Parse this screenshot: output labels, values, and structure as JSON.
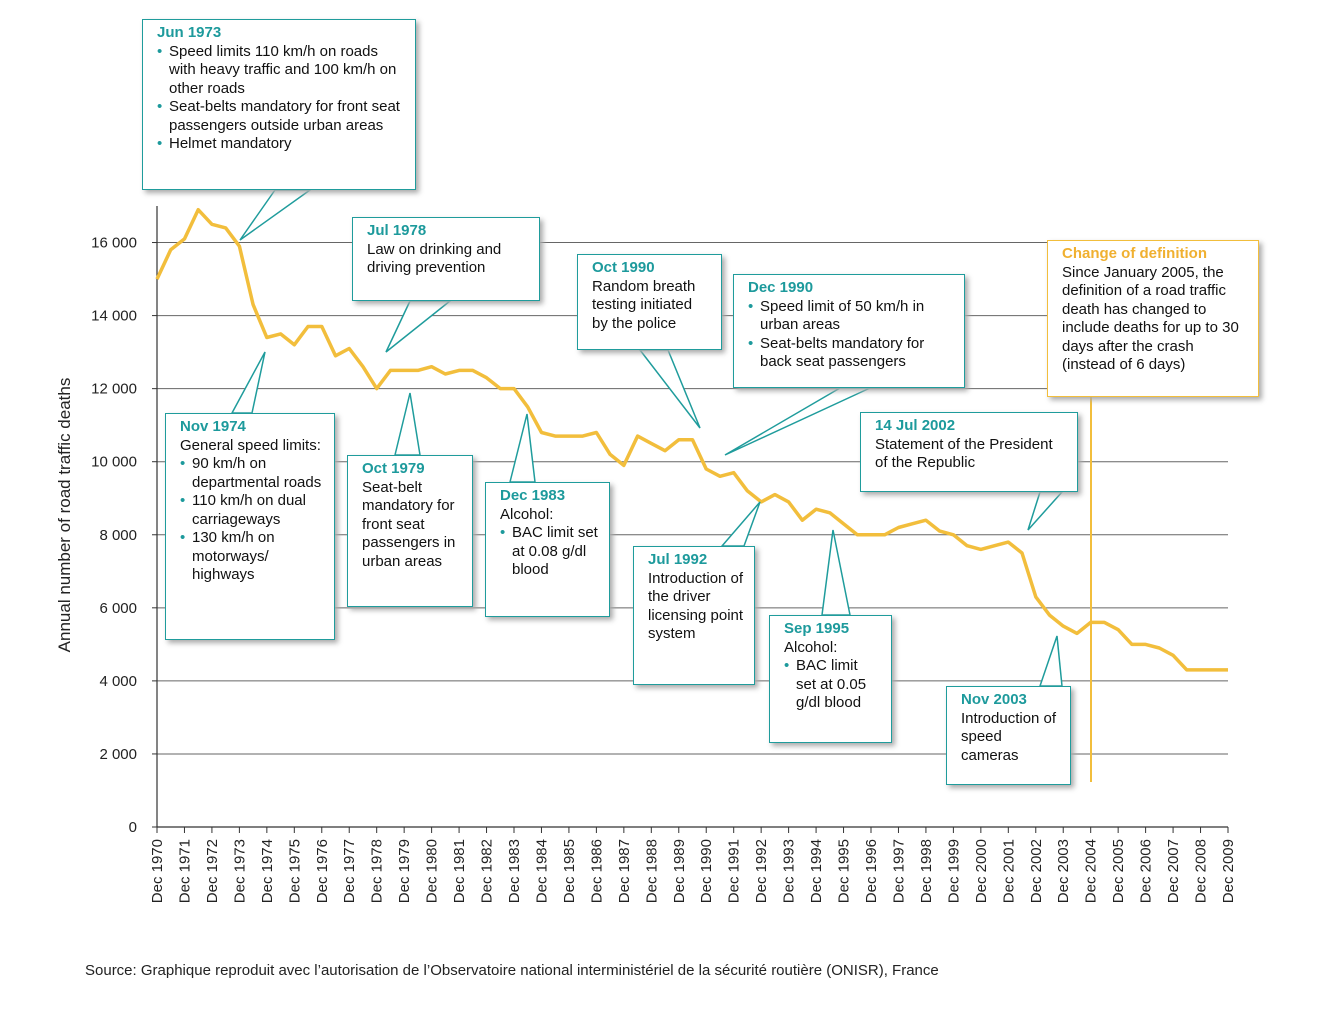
{
  "chart_data": {
    "type": "line",
    "y_label": "Annual number of road traffic deaths",
    "source": "Source: Graphique reproduit avec l’autorisation de l’Observatoire national interministériel de la sécurité routière (ONISR), France",
    "color": "#f2be3c",
    "categories": [
      "Dec 1970",
      null,
      "Dec 1971",
      null,
      "Dec 1972",
      null,
      "Dec 1973",
      null,
      "Dec 1974",
      null,
      "Dec 1975",
      null,
      "Dec 1976",
      null,
      "Dec 1977",
      null,
      "Dec 1978",
      null,
      "Dec 1979",
      null,
      "Dec 1980",
      null,
      "Dec 1981",
      null,
      "Dec 1982",
      null,
      "Dec 1983",
      null,
      "Dec 1984",
      null,
      "Dec 1985",
      null,
      "Dec 1986",
      null,
      "Dec 1987",
      null,
      "Dec 1988",
      null,
      "Dec 1989",
      null,
      "Dec 1990",
      null,
      "Dec 1991",
      null,
      "Dec 1992",
      null,
      "Dec 1993",
      null,
      "Dec 1994",
      null,
      "Dec 1995",
      null,
      "Dec 1996",
      null,
      "Dec 1997",
      null,
      "Dec 1998",
      null,
      "Dec 1999",
      null,
      "Dec 2000",
      null,
      "Dec 2001",
      null,
      "Dec 2002",
      null,
      "Dec 2003",
      null,
      "Dec 2004",
      null,
      "Dec 2005",
      null,
      "Dec 2006",
      null,
      "Dec 2007",
      null,
      "Dec 2008",
      null,
      "Dec 2009"
    ],
    "values": [
      15000,
      15800,
      16100,
      16900,
      16500,
      16400,
      15900,
      14300,
      13400,
      13500,
      13200,
      13700,
      13700,
      12900,
      13100,
      12600,
      12000,
      12500,
      12500,
      12500,
      12600,
      12400,
      12500,
      12500,
      12300,
      12000,
      12000,
      11500,
      10800,
      10700,
      10700,
      10700,
      10800,
      10200,
      9900,
      10700,
      10500,
      10300,
      10600,
      10600,
      9800,
      9600,
      9700,
      9200,
      8900,
      9100,
      8900,
      8400,
      8700,
      8600,
      8300,
      8000,
      8000,
      8000,
      8200,
      8300,
      8400,
      8100,
      8000,
      7700,
      7600,
      7700,
      7800,
      7500,
      6300,
      5800,
      5500,
      5300,
      5600,
      5600,
      5400,
      5000,
      5000,
      4900,
      4700,
      4300,
      4300,
      4300,
      4300
    ],
    "ylim": [
      0,
      17000
    ],
    "yticks": [
      0,
      {
        "value": 2000,
        "label": "2 000"
      },
      {
        "value": 4000,
        "label": "4 000"
      },
      {
        "value": 6000,
        "label": "6 000"
      },
      {
        "value": 8000,
        "label": "8 000"
      },
      {
        "value": 10000,
        "label": "10 000"
      },
      {
        "value": 12000,
        "label": "12 000"
      },
      {
        "value": 14000,
        "label": "14 000"
      },
      {
        "value": 16000,
        "label": "16 000"
      }
    ],
    "grid": true,
    "annotations": [
      {
        "title": "Jun 1973",
        "bullets": [
          "Speed limits 110 km/h on roads with heavy traffic and 100 km/h on other roads",
          "Seat-belts mandatory for front seat passengers outside urban areas",
          "Helmet mandatory"
        ]
      },
      {
        "title": "Jul 1978",
        "text": "Law on drinking and driving prevention"
      },
      {
        "title": "Oct 1990",
        "text": "Random breath testing initiated by the police"
      },
      {
        "title": "Dec 1990",
        "bullets": [
          "Speed limit of 50 km/h in urban areas",
          "Seat-belts mandatory for back seat passengers"
        ]
      },
      {
        "title": "Nov 1974",
        "text": "General speed limits:",
        "bullets": [
          "90 km/h on departmental roads",
          "110 km/h on dual carriageways",
          "130 km/h on motorways/ highways"
        ]
      },
      {
        "title": "Oct 1979",
        "text": "Seat-belt mandatory for front seat passengers in urban areas"
      },
      {
        "title": "Dec 1983",
        "text": "Alcohol:",
        "bullets": [
          "BAC limit set at 0.08 g/dl blood"
        ]
      },
      {
        "title": "14 Jul 2002",
        "text": "Statement of the President of the Republic"
      },
      {
        "title": "Jul 1992",
        "text": "Introduction of the driver licensing point system"
      },
      {
        "title": "Sep 1995",
        "text": "Alcohol:",
        "bullets": [
          "BAC limit set at 0.05 g/dl blood"
        ]
      },
      {
        "title": "Nov 2003",
        "text": "Introduction of speed cameras"
      }
    ],
    "definition_note": {
      "title": "Change of definition",
      "text": "Since January 2005, the definition of a road traffic death has changed to include deaths for up to 30 days after the crash (instead of 6 days)"
    }
  }
}
